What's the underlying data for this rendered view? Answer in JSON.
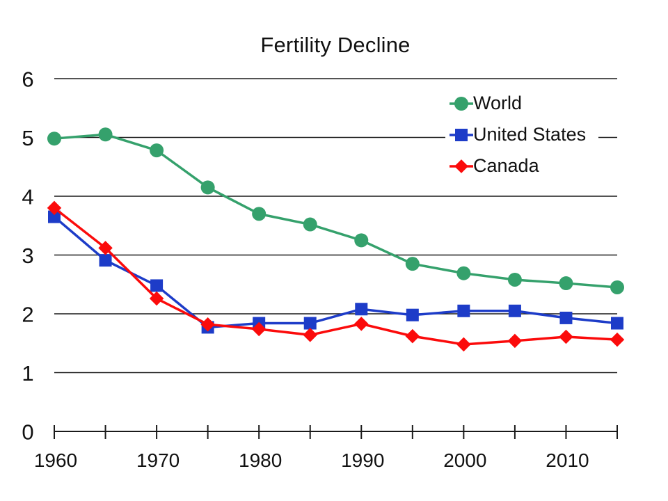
{
  "chart_data": {
    "type": "line",
    "title": "Fertility Decline",
    "x": [
      1960,
      1965,
      1970,
      1975,
      1980,
      1985,
      1990,
      1995,
      2000,
      2005,
      2010,
      2015
    ],
    "series": [
      {
        "name": "World",
        "marker": "circle",
        "color": "#35A16C",
        "values": [
          4.98,
          5.05,
          4.78,
          4.15,
          3.7,
          3.52,
          3.25,
          2.85,
          2.69,
          2.58,
          2.52,
          2.45
        ]
      },
      {
        "name": "United States",
        "marker": "square",
        "color": "#1D3CC8",
        "values": [
          3.65,
          2.91,
          2.48,
          1.77,
          1.84,
          1.84,
          2.08,
          1.98,
          2.05,
          2.05,
          1.93,
          1.84
        ]
      },
      {
        "name": "Canada",
        "marker": "diamond",
        "color": "#FB0B0B",
        "values": [
          3.8,
          3.12,
          2.26,
          1.82,
          1.74,
          1.64,
          1.83,
          1.62,
          1.48,
          1.54,
          1.61,
          1.56
        ]
      }
    ],
    "xlabel": "",
    "ylabel": "",
    "ylim": [
      0,
      6
    ],
    "yticks": [
      0,
      1,
      2,
      3,
      4,
      5,
      6
    ],
    "xtick_labels": [
      "1960",
      "1970",
      "1980",
      "1990",
      "2000",
      "2010"
    ],
    "grid": "horizontal",
    "legend_position": "upper-right-inside",
    "axis_color": "#1a1a1a",
    "grid_color": "#1a1a1a"
  }
}
